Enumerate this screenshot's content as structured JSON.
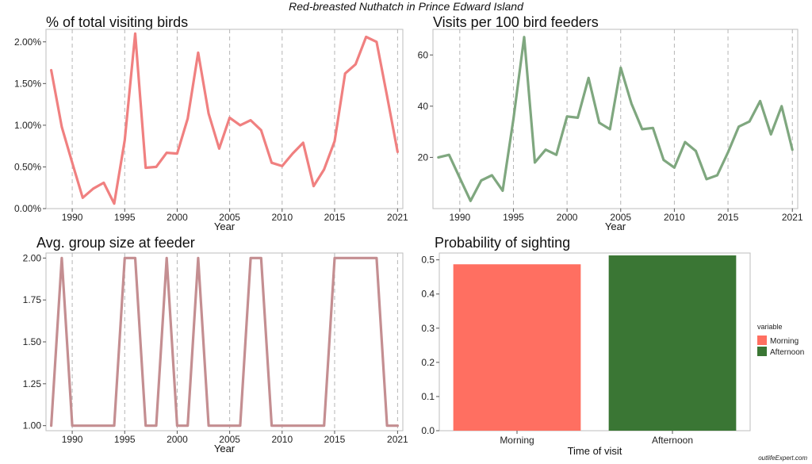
{
  "figure": {
    "title": "Red-breasted Nuthatch in Prince Edward Island",
    "watermark": "outlifeExpert.com"
  },
  "chart_data": [
    {
      "type": "line",
      "title": "% of total visiting birds",
      "xlabel": "Year",
      "ylabel": "",
      "color": "#F08080",
      "xlim": [
        1987.5,
        2021.5
      ],
      "ylim": [
        0,
        2.15
      ],
      "x_ticks": [
        1990,
        1995,
        2000,
        2005,
        2010,
        2015,
        2021
      ],
      "y_ticks": [
        0,
        0.5,
        1.0,
        1.5,
        2.0
      ],
      "y_tick_labels": [
        "0.00%",
        "0.50%",
        "1.00%",
        "1.50%",
        "2.00%"
      ],
      "x": [
        1988,
        1989,
        1990,
        1991,
        1992,
        1993,
        1994,
        1995,
        1996,
        1997,
        1998,
        1999,
        2000,
        2001,
        2002,
        2003,
        2004,
        2005,
        2006,
        2007,
        2008,
        2009,
        2010,
        2011,
        2012,
        2013,
        2014,
        2015,
        2016,
        2017,
        2018,
        2019,
        2020,
        2021
      ],
      "values": [
        1.66,
        0.98,
        0.55,
        0.13,
        0.24,
        0.31,
        0.06,
        0.82,
        2.1,
        0.49,
        0.5,
        0.67,
        0.66,
        1.08,
        1.87,
        1.14,
        0.72,
        1.09,
        1.0,
        1.06,
        0.94,
        0.55,
        0.51,
        0.66,
        0.79,
        0.27,
        0.47,
        0.81,
        1.62,
        1.73,
        2.06,
        2.0,
        1.35,
        0.68
      ]
    },
    {
      "type": "line",
      "title": "Visits per 100 bird feeders",
      "xlabel": "Year",
      "ylabel": "",
      "color": "#7FA77F",
      "xlim": [
        1987.5,
        2021.5
      ],
      "ylim": [
        0,
        70
      ],
      "x_ticks": [
        1990,
        1995,
        2000,
        2005,
        2010,
        2015,
        2021
      ],
      "y_ticks": [
        20,
        40,
        60
      ],
      "y_tick_labels": [
        "20",
        "40",
        "60"
      ],
      "x": [
        1988,
        1989,
        1990,
        1991,
        1992,
        1993,
        1994,
        1995,
        1996,
        1997,
        1998,
        1999,
        2000,
        2001,
        2002,
        2003,
        2004,
        2005,
        2006,
        2007,
        2008,
        2009,
        2010,
        2011,
        2012,
        2013,
        2014,
        2015,
        2016,
        2017,
        2018,
        2019,
        2020,
        2021
      ],
      "values": [
        20,
        21,
        12,
        3,
        11,
        13,
        7,
        35,
        67,
        18,
        23,
        21,
        36,
        35.5,
        51,
        33.5,
        31,
        55,
        41,
        31,
        31.5,
        19,
        16,
        26,
        22.5,
        11.5,
        13,
        22,
        32,
        34,
        42,
        29,
        40,
        23
      ]
    },
    {
      "type": "line",
      "title": "Avg. group size at feeder",
      "xlabel": "Year",
      "ylabel": "",
      "color": "#C48E91",
      "xlim": [
        1987.5,
        2021.5
      ],
      "ylim": [
        0.97,
        2.03
      ],
      "x_ticks": [
        1990,
        1995,
        2000,
        2005,
        2010,
        2015,
        2021
      ],
      "y_ticks": [
        1.0,
        1.25,
        1.5,
        1.75,
        2.0
      ],
      "y_tick_labels": [
        "1.00",
        "1.25",
        "1.50",
        "1.75",
        "2.00"
      ],
      "x": [
        1988,
        1989,
        1990,
        1991,
        1992,
        1993,
        1994,
        1995,
        1996,
        1997,
        1998,
        1999,
        2000,
        2001,
        2002,
        2003,
        2004,
        2005,
        2006,
        2007,
        2008,
        2009,
        2010,
        2011,
        2012,
        2013,
        2014,
        2015,
        2016,
        2017,
        2018,
        2019,
        2020,
        2021
      ],
      "values": [
        1,
        2,
        1,
        1,
        1,
        1,
        1,
        2,
        2,
        1,
        1,
        2,
        1,
        1,
        2,
        1,
        1,
        1,
        1,
        2,
        2,
        1,
        1,
        1,
        1,
        1,
        1,
        2,
        2,
        2,
        2,
        2,
        1,
        1
      ]
    },
    {
      "type": "bar",
      "title": "Probability of sighting",
      "xlabel": "Time of visit",
      "ylabel": "",
      "ylim": [
        0,
        0.52
      ],
      "y_ticks": [
        0.0,
        0.1,
        0.2,
        0.3,
        0.4,
        0.5
      ],
      "y_tick_labels": [
        "0.0",
        "0.1",
        "0.2",
        "0.3",
        "0.4",
        "0.5"
      ],
      "categories": [
        "Morning",
        "Afternoon"
      ],
      "values": [
        0.487,
        0.513
      ],
      "colors": [
        "#FF6F61",
        "#3A7634"
      ],
      "legend": {
        "title": "variable",
        "position": "right",
        "entries": [
          "Morning",
          "Afternoon"
        ]
      }
    }
  ]
}
